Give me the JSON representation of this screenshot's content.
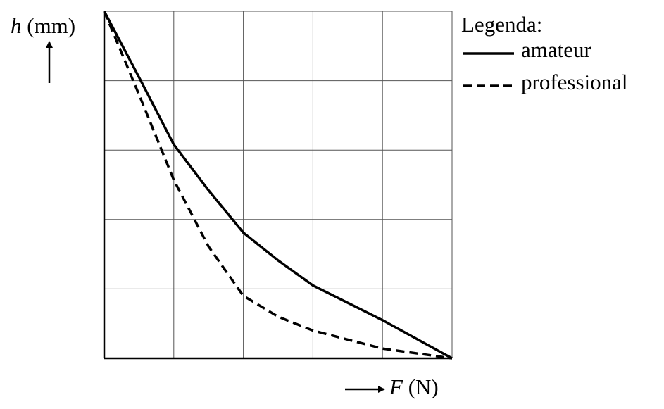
{
  "chart_data": {
    "type": "line",
    "y_label": {
      "symbol": "h",
      "unit": "(mm)"
    },
    "x_label": {
      "symbol": "F",
      "unit": "(N)"
    },
    "legend_title": "Legenda:",
    "x": [
      0,
      0.5,
      1,
      1.5,
      2,
      2.5,
      3,
      4,
      5
    ],
    "series": [
      {
        "name": "amateur",
        "color": "#000000",
        "dash": false,
        "values": [
          5,
          4.05,
          3.08,
          2.42,
          1.81,
          1.41,
          1.05,
          0.55,
          0
        ]
      },
      {
        "name": "professional",
        "color": "#000000",
        "dash": true,
        "values": [
          5,
          3.8,
          2.57,
          1.61,
          0.9,
          0.6,
          0.4,
          0.14,
          0
        ]
      }
    ],
    "xlim": [
      0,
      5
    ],
    "ylim": [
      0,
      5
    ],
    "xticks": [
      0,
      1,
      2,
      3,
      4,
      5
    ],
    "yticks": [
      0,
      1,
      2,
      3,
      4,
      5
    ],
    "grid": true,
    "tick_labels": false,
    "legend_position": "top-right"
  }
}
